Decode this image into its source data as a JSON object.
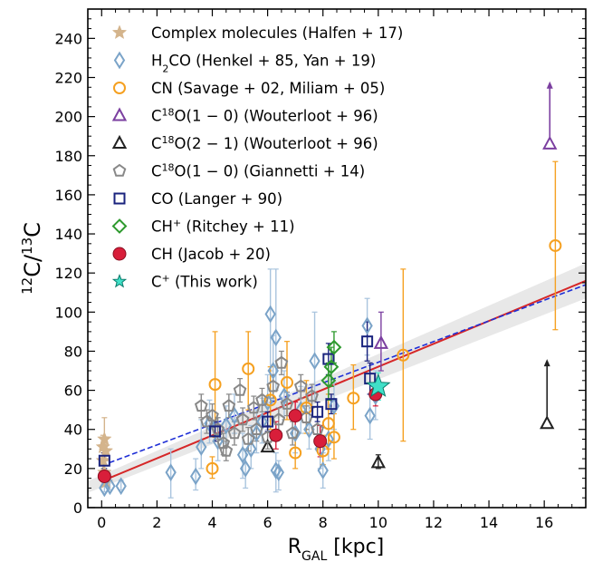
{
  "chart_data": {
    "type": "scatter",
    "xlabel": "R_GAL [kpc]",
    "ylabel": "12C/13C",
    "xlim": [
      -0.5,
      17.5
    ],
    "ylim": [
      0,
      255
    ],
    "x_ticks": [
      0,
      2,
      4,
      6,
      8,
      10,
      12,
      14,
      16
    ],
    "y_ticks": [
      0,
      20,
      40,
      60,
      80,
      100,
      120,
      140,
      160,
      180,
      200,
      220,
      240
    ],
    "grid": false,
    "legend_position": "top-left",
    "fits": [
      {
        "name": "red-fit",
        "style": "solid",
        "color": "#d62728",
        "x": [
          0,
          17.5
        ],
        "y": [
          13.5,
          116
        ],
        "band_halfwidth": [
          3,
          9
        ]
      },
      {
        "name": "blue-fit",
        "style": "dashed",
        "color": "#1f2fd6",
        "x": [
          0,
          17.5
        ],
        "y": [
          21.5,
          114
        ]
      }
    ],
    "series": [
      {
        "name": "Complex molecules (Halfen + 17)",
        "marker": "star",
        "color": "#d4b48c",
        "points": [
          {
            "x": 0.05,
            "y": 31,
            "err": [
              26,
              37
            ]
          },
          {
            "x": 0.1,
            "y": 35,
            "err": [
              28,
              46
            ]
          },
          {
            "x": 0.15,
            "y": 29,
            "err": [
              24,
              36
            ]
          },
          {
            "x": 0.05,
            "y": 24,
            "err": [
              20,
              28
            ]
          },
          {
            "x": 0.1,
            "y": 18,
            "err": [
              15,
              22
            ]
          },
          {
            "x": 0.15,
            "y": 13,
            "err": [
              11,
              16
            ]
          }
        ]
      },
      {
        "name": "H2CO (Henkel + 85, Yan + 19)",
        "marker": "thin-diamond",
        "color": "#7aa3c8",
        "points": [
          {
            "x": 0.1,
            "y": 10,
            "err": [
              8,
              13
            ]
          },
          {
            "x": 0.3,
            "y": 11,
            "err": [
              9,
              14
            ]
          },
          {
            "x": 0.7,
            "y": 11,
            "err": [
              9,
              14
            ]
          },
          {
            "x": 2.5,
            "y": 18,
            "err": [
              5,
              30
            ]
          },
          {
            "x": 3.4,
            "y": 16,
            "err": [
              9,
              25
            ]
          },
          {
            "x": 3.6,
            "y": 31,
            "err": [
              20,
              45
            ]
          },
          {
            "x": 3.9,
            "y": 43,
            "err": [
              33,
              55
            ]
          },
          {
            "x": 4.2,
            "y": 34,
            "err": [
              24,
              46
            ]
          },
          {
            "x": 4.5,
            "y": 42,
            "err": [
              33,
              52
            ]
          },
          {
            "x": 4.8,
            "y": 47,
            "err": [
              38,
              58
            ]
          },
          {
            "x": 5.1,
            "y": 27,
            "err": [
              15,
              38
            ]
          },
          {
            "x": 5.2,
            "y": 20,
            "err": [
              10,
              30
            ]
          },
          {
            "x": 5.4,
            "y": 30,
            "err": [
              20,
              42
            ]
          },
          {
            "x": 5.6,
            "y": 38,
            "err": [
              28,
              50
            ]
          },
          {
            "x": 5.8,
            "y": 44,
            "err": [
              33,
              56
            ]
          },
          {
            "x": 6.0,
            "y": 54,
            "err": [
              40,
              68
            ]
          },
          {
            "x": 6.2,
            "y": 70,
            "err": [
              55,
              88
            ]
          },
          {
            "x": 6.3,
            "y": 87,
            "err": [
              60,
              122
            ]
          },
          {
            "x": 6.1,
            "y": 99,
            "err": [
              70,
              122
            ]
          },
          {
            "x": 6.3,
            "y": 19,
            "err": [
              8,
              28
            ]
          },
          {
            "x": 6.4,
            "y": 18,
            "err": [
              9,
              24
            ]
          },
          {
            "x": 6.6,
            "y": 57,
            "err": [
              45,
              70
            ]
          },
          {
            "x": 7.0,
            "y": 38,
            "err": [
              28,
              48
            ]
          },
          {
            "x": 7.2,
            "y": 50,
            "err": [
              38,
              62
            ]
          },
          {
            "x": 7.5,
            "y": 40,
            "err": [
              30,
              52
            ]
          },
          {
            "x": 7.7,
            "y": 75,
            "err": [
              55,
              100
            ]
          },
          {
            "x": 7.9,
            "y": 30,
            "err": [
              20,
              42
            ]
          },
          {
            "x": 8.0,
            "y": 19,
            "err": [
              10,
              28
            ]
          },
          {
            "x": 8.2,
            "y": 35,
            "err": [
              24,
              46
            ]
          },
          {
            "x": 8.4,
            "y": 52,
            "err": [
              40,
              64
            ]
          },
          {
            "x": 9.6,
            "y": 93,
            "err": [
              78,
              107
            ]
          },
          {
            "x": 9.7,
            "y": 47,
            "err": [
              35,
              58
            ]
          },
          {
            "x": 9.9,
            "y": 57,
            "err": [
              45,
              70
            ]
          }
        ]
      },
      {
        "name": "CN (Savage + 02, Miliam + 05)",
        "marker": "circle-open",
        "color": "#f5a020",
        "points": [
          {
            "x": 4.0,
            "y": 20,
            "err": [
              15,
              26
            ]
          },
          {
            "x": 4.1,
            "y": 63,
            "err": [
              36,
              90
            ]
          },
          {
            "x": 5.3,
            "y": 71,
            "err": [
              50,
              90
            ]
          },
          {
            "x": 6.1,
            "y": 55,
            "err": [
              40,
              72
            ]
          },
          {
            "x": 6.7,
            "y": 64,
            "err": [
              45,
              85
            ]
          },
          {
            "x": 7.0,
            "y": 28,
            "err": [
              20,
              36
            ]
          },
          {
            "x": 7.4,
            "y": 51,
            "err": [
              38,
              65
            ]
          },
          {
            "x": 8.0,
            "y": 29,
            "err": [
              22,
              37
            ]
          },
          {
            "x": 8.2,
            "y": 43,
            "err": [
              30,
              58
            ]
          },
          {
            "x": 8.4,
            "y": 36,
            "err": [
              25,
              48
            ]
          },
          {
            "x": 9.1,
            "y": 56,
            "err": [
              40,
              73
            ]
          },
          {
            "x": 10.9,
            "y": 78,
            "err": [
              34,
              122
            ]
          },
          {
            "x": 16.4,
            "y": 134,
            "err": [
              91,
              177
            ]
          }
        ]
      },
      {
        "name": "C18O(1-0) (Wouterloot + 96)",
        "marker": "triangle-open",
        "color": "#7b3fa0",
        "points": [
          {
            "x": 10.1,
            "y": 84,
            "err": [
              70,
              100
            ]
          },
          {
            "x": 16.2,
            "y": 186,
            "err": null,
            "lower_limit": 218
          }
        ]
      },
      {
        "name": "C18O(2-1) (Wouterloot + 96)",
        "marker": "triangle-open",
        "color": "#222222",
        "points": [
          {
            "x": 6.0,
            "y": 31,
            "err": null
          },
          {
            "x": 10.0,
            "y": 23,
            "err": [
              20,
              27
            ]
          },
          {
            "x": 16.1,
            "y": 43,
            "err": null,
            "lower_limit": 76
          }
        ]
      },
      {
        "name": "C18O(1-0) (Giannetti + 14)",
        "marker": "pentagon-open",
        "color": "#888888",
        "points": [
          {
            "x": 3.6,
            "y": 52,
            "err": [
              46,
              58
            ]
          },
          {
            "x": 3.8,
            "y": 44,
            "err": [
              38,
              50
            ]
          },
          {
            "x": 4.0,
            "y": 47,
            "err": [
              41,
              53
            ]
          },
          {
            "x": 4.2,
            "y": 40,
            "err": [
              35,
              46
            ]
          },
          {
            "x": 4.4,
            "y": 33,
            "err": [
              27,
              38
            ]
          },
          {
            "x": 4.5,
            "y": 29,
            "err": [
              24,
              34
            ]
          },
          {
            "x": 4.6,
            "y": 52,
            "err": [
              46,
              58
            ]
          },
          {
            "x": 4.8,
            "y": 38,
            "err": [
              32,
              44
            ]
          },
          {
            "x": 5.0,
            "y": 60,
            "err": [
              54,
              66
            ]
          },
          {
            "x": 5.1,
            "y": 45,
            "err": [
              39,
              51
            ]
          },
          {
            "x": 5.3,
            "y": 35,
            "err": [
              29,
              41
            ]
          },
          {
            "x": 5.5,
            "y": 51,
            "err": [
              45,
              57
            ]
          },
          {
            "x": 5.6,
            "y": 40,
            "err": [
              34,
              46
            ]
          },
          {
            "x": 5.8,
            "y": 55,
            "err": [
              49,
              61
            ]
          },
          {
            "x": 6.0,
            "y": 36,
            "err": [
              30,
              42
            ]
          },
          {
            "x": 6.2,
            "y": 62,
            "err": [
              56,
              68
            ]
          },
          {
            "x": 6.4,
            "y": 45,
            "err": [
              39,
              51
            ]
          },
          {
            "x": 6.5,
            "y": 74,
            "err": [
              68,
              80
            ]
          },
          {
            "x": 6.7,
            "y": 53,
            "err": [
              47,
              59
            ]
          },
          {
            "x": 6.9,
            "y": 38,
            "err": [
              32,
              44
            ]
          },
          {
            "x": 7.2,
            "y": 62,
            "err": [
              56,
              68
            ]
          },
          {
            "x": 7.4,
            "y": 46,
            "err": [
              40,
              52
            ]
          },
          {
            "x": 7.6,
            "y": 57,
            "err": [
              51,
              63
            ]
          },
          {
            "x": 7.8,
            "y": 40,
            "err": [
              34,
              46
            ]
          }
        ]
      },
      {
        "name": "CO (Langer + 90)",
        "marker": "square-open",
        "color": "#1a237e",
        "points": [
          {
            "x": 0.1,
            "y": 24,
            "err": [
              20,
              28
            ]
          },
          {
            "x": 4.1,
            "y": 39,
            "err": [
              34,
              44
            ]
          },
          {
            "x": 6.0,
            "y": 44,
            "err": [
              39,
              49
            ]
          },
          {
            "x": 7.8,
            "y": 49,
            "err": [
              44,
              54
            ]
          },
          {
            "x": 8.3,
            "y": 53,
            "err": [
              48,
              58
            ]
          },
          {
            "x": 8.2,
            "y": 76,
            "err": [
              68,
              84
            ]
          },
          {
            "x": 9.6,
            "y": 85,
            "err": [
              75,
              95
            ]
          },
          {
            "x": 9.7,
            "y": 66,
            "err": [
              58,
              74
            ]
          }
        ]
      },
      {
        "name": "CH+ (Ritchey + 11)",
        "marker": "diamond-open",
        "color": "#2e9a2e",
        "points": [
          {
            "x": 8.2,
            "y": 65,
            "err": [
              55,
              74
            ]
          },
          {
            "x": 8.3,
            "y": 72,
            "err": [
              62,
              82
            ]
          },
          {
            "x": 8.4,
            "y": 82,
            "err": [
              74,
              90
            ]
          }
        ]
      },
      {
        "name": "CH (Jacob + 20)",
        "marker": "circle-filled",
        "color": "#d81e3a",
        "points": [
          {
            "x": 0.1,
            "y": 16,
            "err": [
              13,
              19
            ]
          },
          {
            "x": 6.3,
            "y": 37,
            "err": [
              30,
              44
            ]
          },
          {
            "x": 7.0,
            "y": 47,
            "err": [
              40,
              54
            ]
          },
          {
            "x": 7.9,
            "y": 34,
            "err": [
              26,
              42
            ]
          },
          {
            "x": 9.9,
            "y": 58,
            "err": [
              52,
              64
            ]
          }
        ]
      },
      {
        "name": "C+ (This work)",
        "marker": "star-filled",
        "color": "#40e0c8",
        "points": [
          {
            "x": 10.0,
            "y": 62,
            "err": [
              55,
              69
            ]
          }
        ]
      }
    ]
  },
  "legend": {
    "entries": [
      {
        "pre": "Complex molecules (Halfen + 17)",
        "sup": "",
        "post": ""
      },
      {
        "pre": "H",
        "sub": "2",
        "post": "CO (Henkel + 85, Yan + 19)"
      },
      {
        "pre": "CN (Savage + 02, Miliam + 05)",
        "sup": "",
        "post": ""
      },
      {
        "pre": "C",
        "sup": "18",
        "post": "O(1 − 0) (Wouterloot + 96)"
      },
      {
        "pre": "C",
        "sup": "18",
        "post": "O(2 − 1) (Wouterloot + 96)"
      },
      {
        "pre": "C",
        "sup": "18",
        "post": "O(1 − 0) (Giannetti + 14)"
      },
      {
        "pre": "CO (Langer + 90)",
        "sup": "",
        "post": ""
      },
      {
        "pre": "CH",
        "sup": "+",
        "post": " (Ritchey + 11)"
      },
      {
        "pre": "CH (Jacob + 20)",
        "sup": "",
        "post": ""
      },
      {
        "pre": "C",
        "sup": "+",
        "post": " (This work)"
      }
    ]
  },
  "axis_text": {
    "ylabel_sup1": "12",
    "ylabel_mid": "C/",
    "ylabel_sup2": "13",
    "ylabel_end": "C",
    "xlabel_main": "R",
    "xlabel_sub": "GAL",
    "xlabel_unit": " [kpc]"
  }
}
